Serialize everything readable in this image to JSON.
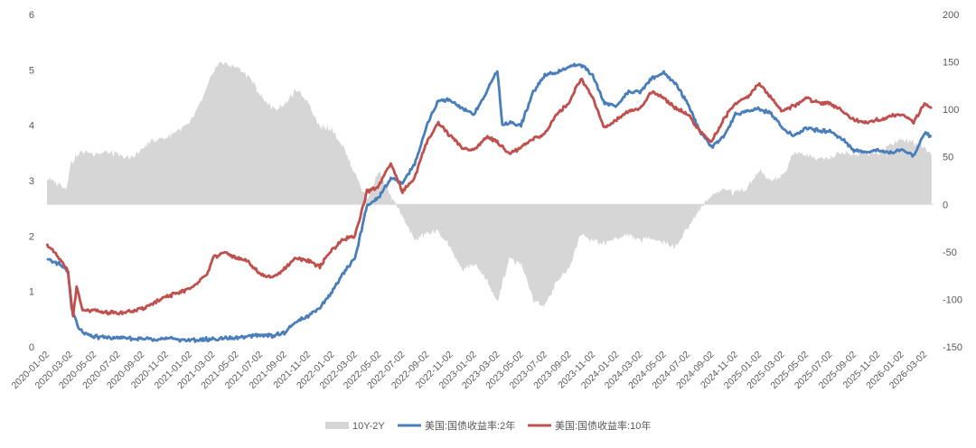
{
  "chart_data": {
    "type": "line",
    "x_ticks": [
      "2020-01-02",
      "2020-03-02",
      "2020-05-02",
      "2020-07-02",
      "2020-09-02",
      "2020-11-02",
      "2021-01-02",
      "2021-03-02",
      "2021-05-02",
      "2021-07-02",
      "2021-09-02",
      "2021-11-02",
      "2022-01-02",
      "2022-03-02",
      "2022-05-02",
      "2022-07-02",
      "2022-09-02",
      "2022-11-02",
      "2023-01-02",
      "2023-03-02",
      "2023-05-02",
      "2023-07-02",
      "2023-09-02",
      "2023-11-02",
      "2024-01-02",
      "2024-03-02",
      "2024-05-02",
      "2024-07-02",
      "2024-09-02",
      "2024-11-02",
      "2025-01-02",
      "2025-03-02",
      "2025-05-02",
      "2025-07-02",
      "2025-09-02",
      "2025-11-02",
      "2026-01-02",
      "2026-03-02"
    ],
    "y_left": {
      "min": 0,
      "max": 6,
      "ticks": [
        "0",
        "1",
        "2",
        "3",
        "4",
        "5",
        "6"
      ]
    },
    "y_right": {
      "min": -150,
      "max": 200,
      "ticks": [
        "-150",
        "-100",
        "-50",
        "0",
        "50",
        "100",
        "150",
        "200"
      ]
    },
    "legend_position": "bottom",
    "grid": false,
    "series": [
      {
        "name": "10Y-2Y",
        "type": "area",
        "axis": "right",
        "color": "#d6d6d6",
        "points": [
          [
            "2020-01-02",
            27
          ],
          [
            "2020-02-02",
            22
          ],
          [
            "2020-02-20",
            16
          ],
          [
            "2020-03-02",
            42
          ],
          [
            "2020-03-15",
            50
          ],
          [
            "2020-04-02",
            56
          ],
          [
            "2020-05-02",
            54
          ],
          [
            "2020-06-02",
            55
          ],
          [
            "2020-07-02",
            52
          ],
          [
            "2020-08-02",
            48
          ],
          [
            "2020-09-02",
            58
          ],
          [
            "2020-10-02",
            68
          ],
          [
            "2020-11-02",
            70
          ],
          [
            "2020-12-02",
            78
          ],
          [
            "2021-01-02",
            85
          ],
          [
            "2021-02-02",
            110
          ],
          [
            "2021-03-02",
            138
          ],
          [
            "2021-03-20",
            150
          ],
          [
            "2021-04-02",
            148
          ],
          [
            "2021-05-02",
            145
          ],
          [
            "2021-06-02",
            135
          ],
          [
            "2021-07-02",
            115
          ],
          [
            "2021-08-02",
            100
          ],
          [
            "2021-09-02",
            105
          ],
          [
            "2021-10-02",
            120
          ],
          [
            "2021-11-02",
            108
          ],
          [
            "2021-12-02",
            82
          ],
          [
            "2022-01-02",
            80
          ],
          [
            "2022-02-02",
            58
          ],
          [
            "2022-03-02",
            32
          ],
          [
            "2022-04-02",
            5
          ],
          [
            "2022-05-02",
            35
          ],
          [
            "2022-06-02",
            8
          ],
          [
            "2022-07-02",
            -12
          ],
          [
            "2022-08-02",
            -38
          ],
          [
            "2022-09-02",
            -30
          ],
          [
            "2022-10-02",
            -28
          ],
          [
            "2022-11-02",
            -45
          ],
          [
            "2022-12-02",
            -70
          ],
          [
            "2023-01-02",
            -62
          ],
          [
            "2023-02-02",
            -80
          ],
          [
            "2023-03-02",
            -103
          ],
          [
            "2023-04-02",
            -58
          ],
          [
            "2023-05-02",
            -62
          ],
          [
            "2023-06-02",
            -100
          ],
          [
            "2023-07-02",
            -108
          ],
          [
            "2023-08-02",
            -80
          ],
          [
            "2023-09-02",
            -68
          ],
          [
            "2023-10-02",
            -30
          ],
          [
            "2023-11-02",
            -38
          ],
          [
            "2023-12-02",
            -42
          ],
          [
            "2024-01-02",
            -35
          ],
          [
            "2024-02-02",
            -32
          ],
          [
            "2024-03-02",
            -38
          ],
          [
            "2024-04-02",
            -35
          ],
          [
            "2024-05-02",
            -40
          ],
          [
            "2024-06-02",
            -45
          ],
          [
            "2024-07-02",
            -25
          ],
          [
            "2024-08-02",
            -5
          ],
          [
            "2024-09-02",
            10
          ],
          [
            "2024-10-02",
            17
          ],
          [
            "2024-11-02",
            12
          ],
          [
            "2024-12-02",
            18
          ],
          [
            "2025-01-02",
            35
          ],
          [
            "2025-02-02",
            25
          ],
          [
            "2025-03-02",
            30
          ],
          [
            "2025-04-02",
            55
          ],
          [
            "2025-05-02",
            52
          ],
          [
            "2025-06-02",
            48
          ],
          [
            "2025-07-02",
            50
          ],
          [
            "2025-08-02",
            55
          ],
          [
            "2025-09-02",
            52
          ],
          [
            "2025-10-02",
            55
          ],
          [
            "2025-11-02",
            52
          ],
          [
            "2025-12-02",
            62
          ],
          [
            "2026-01-02",
            68
          ],
          [
            "2026-02-02",
            65
          ],
          [
            "2026-03-02",
            58
          ],
          [
            "2026-03-20",
            52
          ]
        ]
      },
      {
        "name": "美国:国债收益率:2年",
        "type": "line",
        "axis": "left",
        "color": "#4a7ebb",
        "points": [
          [
            "2020-01-02",
            1.57
          ],
          [
            "2020-02-02",
            1.5
          ],
          [
            "2020-02-25",
            1.35
          ],
          [
            "2020-03-05",
            0.7
          ],
          [
            "2020-03-20",
            0.4
          ],
          [
            "2020-04-02",
            0.25
          ],
          [
            "2020-05-02",
            0.18
          ],
          [
            "2020-07-02",
            0.16
          ],
          [
            "2020-09-02",
            0.14
          ],
          [
            "2020-11-02",
            0.15
          ],
          [
            "2021-01-02",
            0.12
          ],
          [
            "2021-03-02",
            0.14
          ],
          [
            "2021-05-02",
            0.16
          ],
          [
            "2021-07-02",
            0.22
          ],
          [
            "2021-08-02",
            0.2
          ],
          [
            "2021-09-02",
            0.25
          ],
          [
            "2021-10-02",
            0.45
          ],
          [
            "2021-11-02",
            0.55
          ],
          [
            "2021-12-02",
            0.7
          ],
          [
            "2022-01-02",
            1.0
          ],
          [
            "2022-02-02",
            1.35
          ],
          [
            "2022-03-02",
            1.6
          ],
          [
            "2022-04-02",
            2.55
          ],
          [
            "2022-05-02",
            2.7
          ],
          [
            "2022-06-02",
            3.05
          ],
          [
            "2022-07-02",
            2.95
          ],
          [
            "2022-08-02",
            3.3
          ],
          [
            "2022-09-02",
            4.0
          ],
          [
            "2022-10-02",
            4.45
          ],
          [
            "2022-11-02",
            4.45
          ],
          [
            "2022-12-02",
            4.3
          ],
          [
            "2023-01-02",
            4.2
          ],
          [
            "2023-02-02",
            4.6
          ],
          [
            "2023-03-02",
            5.0
          ],
          [
            "2023-03-15",
            4.0
          ],
          [
            "2023-04-02",
            4.05
          ],
          [
            "2023-05-02",
            4.0
          ],
          [
            "2023-06-02",
            4.6
          ],
          [
            "2023-07-02",
            4.9
          ],
          [
            "2023-08-02",
            4.95
          ],
          [
            "2023-09-02",
            5.05
          ],
          [
            "2023-10-02",
            5.1
          ],
          [
            "2023-11-02",
            4.9
          ],
          [
            "2023-12-02",
            4.4
          ],
          [
            "2024-01-02",
            4.35
          ],
          [
            "2024-02-02",
            4.6
          ],
          [
            "2024-03-02",
            4.6
          ],
          [
            "2024-04-02",
            4.85
          ],
          [
            "2024-05-02",
            4.95
          ],
          [
            "2024-06-02",
            4.75
          ],
          [
            "2024-07-02",
            4.4
          ],
          [
            "2024-08-02",
            3.9
          ],
          [
            "2024-09-02",
            3.6
          ],
          [
            "2024-10-02",
            3.8
          ],
          [
            "2024-11-02",
            4.2
          ],
          [
            "2024-12-02",
            4.25
          ],
          [
            "2025-01-02",
            4.3
          ],
          [
            "2025-02-02",
            4.2
          ],
          [
            "2025-03-02",
            3.95
          ],
          [
            "2025-04-02",
            3.8
          ],
          [
            "2025-05-02",
            3.95
          ],
          [
            "2025-06-02",
            3.9
          ],
          [
            "2025-07-02",
            3.9
          ],
          [
            "2025-08-02",
            3.75
          ],
          [
            "2025-09-02",
            3.55
          ],
          [
            "2025-10-02",
            3.5
          ],
          [
            "2025-11-02",
            3.55
          ],
          [
            "2025-12-02",
            3.5
          ],
          [
            "2026-01-02",
            3.55
          ],
          [
            "2026-02-02",
            3.45
          ],
          [
            "2026-03-02",
            3.85
          ],
          [
            "2026-03-20",
            3.8
          ]
        ]
      },
      {
        "name": "美国:国债收益率:10年",
        "type": "line",
        "axis": "left",
        "color": "#c0504d",
        "points": [
          [
            "2020-01-02",
            1.85
          ],
          [
            "2020-02-02",
            1.6
          ],
          [
            "2020-02-25",
            1.35
          ],
          [
            "2020-03-09",
            0.55
          ],
          [
            "2020-03-18",
            1.1
          ],
          [
            "2020-04-02",
            0.65
          ],
          [
            "2020-05-02",
            0.65
          ],
          [
            "2020-07-02",
            0.6
          ],
          [
            "2020-09-02",
            0.68
          ],
          [
            "2020-11-02",
            0.9
          ],
          [
            "2021-01-02",
            1.05
          ],
          [
            "2021-02-15",
            1.3
          ],
          [
            "2021-03-02",
            1.6
          ],
          [
            "2021-04-02",
            1.7
          ],
          [
            "2021-05-02",
            1.6
          ],
          [
            "2021-06-02",
            1.55
          ],
          [
            "2021-07-02",
            1.3
          ],
          [
            "2021-08-02",
            1.25
          ],
          [
            "2021-09-02",
            1.4
          ],
          [
            "2021-10-02",
            1.6
          ],
          [
            "2021-11-02",
            1.55
          ],
          [
            "2021-12-02",
            1.45
          ],
          [
            "2022-01-02",
            1.75
          ],
          [
            "2022-02-02",
            1.95
          ],
          [
            "2022-03-02",
            2.0
          ],
          [
            "2022-04-02",
            2.8
          ],
          [
            "2022-05-02",
            2.9
          ],
          [
            "2022-06-02",
            3.3
          ],
          [
            "2022-07-02",
            2.8
          ],
          [
            "2022-08-02",
            3.05
          ],
          [
            "2022-09-02",
            3.7
          ],
          [
            "2022-10-02",
            4.05
          ],
          [
            "2022-11-02",
            3.8
          ],
          [
            "2022-12-02",
            3.6
          ],
          [
            "2023-01-02",
            3.55
          ],
          [
            "2023-02-02",
            3.8
          ],
          [
            "2023-03-02",
            3.7
          ],
          [
            "2023-04-02",
            3.5
          ],
          [
            "2023-05-02",
            3.6
          ],
          [
            "2023-06-02",
            3.75
          ],
          [
            "2023-07-02",
            3.85
          ],
          [
            "2023-08-02",
            4.2
          ],
          [
            "2023-09-02",
            4.4
          ],
          [
            "2023-10-02",
            4.85
          ],
          [
            "2023-11-02",
            4.5
          ],
          [
            "2023-12-02",
            3.95
          ],
          [
            "2024-01-02",
            4.1
          ],
          [
            "2024-02-02",
            4.25
          ],
          [
            "2024-03-02",
            4.3
          ],
          [
            "2024-04-02",
            4.6
          ],
          [
            "2024-05-02",
            4.5
          ],
          [
            "2024-06-02",
            4.3
          ],
          [
            "2024-07-02",
            4.2
          ],
          [
            "2024-08-02",
            3.9
          ],
          [
            "2024-09-02",
            3.7
          ],
          [
            "2024-10-02",
            4.1
          ],
          [
            "2024-11-02",
            4.4
          ],
          [
            "2024-12-02",
            4.5
          ],
          [
            "2025-01-02",
            4.75
          ],
          [
            "2025-02-02",
            4.5
          ],
          [
            "2025-03-02",
            4.25
          ],
          [
            "2025-04-02",
            4.35
          ],
          [
            "2025-05-02",
            4.5
          ],
          [
            "2025-06-02",
            4.4
          ],
          [
            "2025-07-02",
            4.4
          ],
          [
            "2025-08-02",
            4.25
          ],
          [
            "2025-09-02",
            4.1
          ],
          [
            "2025-10-02",
            4.05
          ],
          [
            "2025-11-02",
            4.1
          ],
          [
            "2025-12-02",
            4.15
          ],
          [
            "2026-01-02",
            4.2
          ],
          [
            "2026-02-02",
            4.05
          ],
          [
            "2026-03-02",
            4.4
          ],
          [
            "2026-03-20",
            4.3
          ]
        ]
      }
    ]
  }
}
